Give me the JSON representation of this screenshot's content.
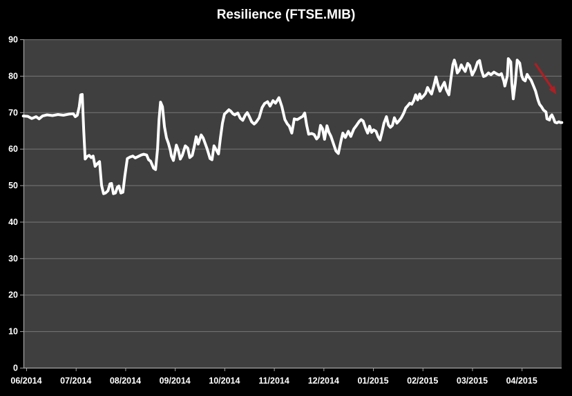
{
  "chart": {
    "title": "Resilience (FTSE.MIB)"
  },
  "colors": {
    "background": "#000000",
    "plot_background": "#3f3f3f",
    "gridline": "#787878",
    "axis": "#a6a6a6",
    "series_line": "#ffffff",
    "text": "#ffffff",
    "annotation_arrow": "#b01e23"
  },
  "chart_data": {
    "type": "line",
    "title": "Resilience (FTSE.MIB)",
    "xlabel": "",
    "ylabel": "",
    "ylim": [
      0,
      90
    ],
    "y_ticks": [
      0,
      10,
      20,
      30,
      40,
      50,
      60,
      70,
      80,
      90
    ],
    "x_tick_labels": [
      "06/2014",
      "07/2014",
      "08/2014",
      "09/2014",
      "10/2014",
      "11/2014",
      "12/2014",
      "01/2015",
      "02/2015",
      "03/2015",
      "04/2015"
    ],
    "grid": "horizontal",
    "legend": "none",
    "series": [
      {
        "name": "Resilience (FTSE.MIB)",
        "color": "#ffffff",
        "x_unit": "months since 06/2014 tick",
        "points": [
          [
            -0.06,
            69.0
          ],
          [
            0.03,
            68.9
          ],
          [
            0.11,
            68.3
          ],
          [
            0.2,
            68.8
          ],
          [
            0.26,
            68.2
          ],
          [
            0.33,
            69.0
          ],
          [
            0.42,
            69.3
          ],
          [
            0.53,
            69.1
          ],
          [
            0.64,
            69.4
          ],
          [
            0.75,
            69.2
          ],
          [
            0.86,
            69.5
          ],
          [
            0.95,
            69.6
          ],
          [
            0.99,
            68.8
          ],
          [
            1.03,
            69.2
          ],
          [
            1.07,
            71.5
          ],
          [
            1.1,
            74.8
          ],
          [
            1.13,
            74.9
          ],
          [
            1.16,
            65.0
          ],
          [
            1.19,
            57.2
          ],
          [
            1.23,
            57.9
          ],
          [
            1.27,
            58.2
          ],
          [
            1.31,
            57.6
          ],
          [
            1.35,
            58.0
          ],
          [
            1.39,
            55.2
          ],
          [
            1.44,
            56.0
          ],
          [
            1.48,
            56.5
          ],
          [
            1.52,
            50.0
          ],
          [
            1.56,
            47.7
          ],
          [
            1.6,
            47.9
          ],
          [
            1.65,
            48.5
          ],
          [
            1.69,
            50.4
          ],
          [
            1.72,
            50.5
          ],
          [
            1.76,
            47.7
          ],
          [
            1.8,
            47.9
          ],
          [
            1.84,
            49.5
          ],
          [
            1.87,
            49.8
          ],
          [
            1.91,
            47.9
          ],
          [
            1.95,
            48.1
          ],
          [
            1.99,
            52.5
          ],
          [
            2.04,
            57.3
          ],
          [
            2.09,
            57.7
          ],
          [
            2.15,
            58.0
          ],
          [
            2.2,
            57.5
          ],
          [
            2.26,
            57.9
          ],
          [
            2.32,
            58.3
          ],
          [
            2.37,
            58.5
          ],
          [
            2.43,
            58.3
          ],
          [
            2.47,
            57.0
          ],
          [
            2.51,
            56.6
          ],
          [
            2.57,
            54.7
          ],
          [
            2.61,
            54.3
          ],
          [
            2.65,
            60.0
          ],
          [
            2.68,
            68.0
          ],
          [
            2.71,
            72.8
          ],
          [
            2.75,
            71.5
          ],
          [
            2.79,
            66.0
          ],
          [
            2.83,
            63.0
          ],
          [
            2.87,
            61.5
          ],
          [
            2.91,
            59.5
          ],
          [
            2.93,
            58.0
          ],
          [
            2.97,
            56.8
          ],
          [
            3.03,
            61.0
          ],
          [
            3.07,
            59.5
          ],
          [
            3.11,
            57.2
          ],
          [
            3.15,
            58.2
          ],
          [
            3.21,
            60.8
          ],
          [
            3.26,
            60.2
          ],
          [
            3.3,
            57.6
          ],
          [
            3.35,
            58.2
          ],
          [
            3.39,
            60.5
          ],
          [
            3.43,
            63.3
          ],
          [
            3.47,
            61.3
          ],
          [
            3.53,
            63.8
          ],
          [
            3.57,
            63.0
          ],
          [
            3.61,
            61.5
          ],
          [
            3.65,
            60.0
          ],
          [
            3.71,
            57.3
          ],
          [
            3.75,
            57.0
          ],
          [
            3.79,
            60.8
          ],
          [
            3.83,
            59.8
          ],
          [
            3.88,
            58.6
          ],
          [
            3.92,
            63.0
          ],
          [
            3.96,
            67.0
          ],
          [
            4.0,
            69.5
          ],
          [
            4.04,
            70.0
          ],
          [
            4.09,
            70.7
          ],
          [
            4.13,
            70.3
          ],
          [
            4.17,
            69.6
          ],
          [
            4.21,
            69.3
          ],
          [
            4.27,
            69.8
          ],
          [
            4.32,
            68.4
          ],
          [
            4.37,
            67.8
          ],
          [
            4.42,
            69.2
          ],
          [
            4.46,
            69.9
          ],
          [
            4.5,
            68.9
          ],
          [
            4.55,
            67.4
          ],
          [
            4.6,
            66.8
          ],
          [
            4.64,
            67.3
          ],
          [
            4.7,
            68.5
          ],
          [
            4.76,
            71.3
          ],
          [
            4.81,
            72.4
          ],
          [
            4.87,
            72.9
          ],
          [
            4.92,
            71.7
          ],
          [
            4.98,
            73.2
          ],
          [
            5.03,
            72.5
          ],
          [
            5.1,
            74.0
          ],
          [
            5.16,
            71.5
          ],
          [
            5.22,
            68.0
          ],
          [
            5.27,
            66.8
          ],
          [
            5.31,
            66.2
          ],
          [
            5.36,
            64.3
          ],
          [
            5.41,
            68.2
          ],
          [
            5.47,
            68.0
          ],
          [
            5.52,
            68.4
          ],
          [
            5.58,
            68.9
          ],
          [
            5.62,
            69.8
          ],
          [
            5.66,
            66.5
          ],
          [
            5.7,
            64.0
          ],
          [
            5.76,
            64.2
          ],
          [
            5.81,
            63.9
          ],
          [
            5.86,
            62.7
          ],
          [
            5.9,
            63.3
          ],
          [
            5.94,
            66.4
          ],
          [
            5.98,
            65.5
          ],
          [
            6.02,
            62.6
          ],
          [
            6.07,
            66.3
          ],
          [
            6.11,
            64.5
          ],
          [
            6.15,
            63.4
          ],
          [
            6.21,
            61.0
          ],
          [
            6.25,
            59.4
          ],
          [
            6.3,
            58.7
          ],
          [
            6.35,
            62.0
          ],
          [
            6.39,
            64.3
          ],
          [
            6.44,
            63.1
          ],
          [
            6.5,
            64.8
          ],
          [
            6.55,
            63.4
          ],
          [
            6.61,
            65.4
          ],
          [
            6.67,
            66.5
          ],
          [
            6.72,
            67.5
          ],
          [
            6.76,
            68.0
          ],
          [
            6.8,
            67.6
          ],
          [
            6.85,
            65.6
          ],
          [
            6.89,
            64.3
          ],
          [
            6.93,
            66.2
          ],
          [
            6.97,
            64.5
          ],
          [
            7.01,
            65.2
          ],
          [
            7.06,
            64.8
          ],
          [
            7.1,
            63.3
          ],
          [
            7.14,
            62.4
          ],
          [
            7.18,
            64.5
          ],
          [
            7.22,
            67.0
          ],
          [
            7.27,
            68.8
          ],
          [
            7.31,
            66.5
          ],
          [
            7.35,
            65.9
          ],
          [
            7.39,
            66.4
          ],
          [
            7.43,
            68.5
          ],
          [
            7.48,
            67.0
          ],
          [
            7.53,
            67.8
          ],
          [
            7.57,
            68.5
          ],
          [
            7.62,
            69.8
          ],
          [
            7.66,
            71.2
          ],
          [
            7.7,
            71.8
          ],
          [
            7.74,
            72.5
          ],
          [
            7.78,
            72.2
          ],
          [
            7.82,
            73.2
          ],
          [
            7.86,
            74.8
          ],
          [
            7.9,
            73.4
          ],
          [
            7.94,
            75.0
          ],
          [
            7.97,
            73.8
          ],
          [
            8.02,
            74.5
          ],
          [
            8.06,
            75.2
          ],
          [
            8.1,
            76.8
          ],
          [
            8.14,
            75.8
          ],
          [
            8.18,
            75.0
          ],
          [
            8.23,
            77.5
          ],
          [
            8.27,
            79.7
          ],
          [
            8.31,
            77.5
          ],
          [
            8.35,
            75.8
          ],
          [
            8.4,
            77.2
          ],
          [
            8.44,
            78.2
          ],
          [
            8.48,
            76.2
          ],
          [
            8.53,
            74.8
          ],
          [
            8.57,
            79.0
          ],
          [
            8.61,
            83.0
          ],
          [
            8.64,
            84.3
          ],
          [
            8.67,
            83.0
          ],
          [
            8.7,
            80.8
          ],
          [
            8.74,
            81.5
          ],
          [
            8.78,
            83.0
          ],
          [
            8.82,
            82.0
          ],
          [
            8.86,
            81.2
          ],
          [
            8.91,
            83.4
          ],
          [
            8.95,
            82.8
          ],
          [
            9.0,
            80.2
          ],
          [
            9.06,
            81.8
          ],
          [
            9.11,
            83.8
          ],
          [
            9.15,
            84.2
          ],
          [
            9.19,
            81.5
          ],
          [
            9.23,
            79.8
          ],
          [
            9.27,
            80.0
          ],
          [
            9.33,
            80.8
          ],
          [
            9.38,
            80.3
          ],
          [
            9.44,
            81.0
          ],
          [
            9.5,
            80.5
          ],
          [
            9.55,
            80.2
          ],
          [
            9.59,
            80.6
          ],
          [
            9.64,
            78.5
          ],
          [
            9.66,
            77.2
          ],
          [
            9.71,
            80.0
          ],
          [
            9.73,
            84.7
          ],
          [
            9.78,
            83.8
          ],
          [
            9.8,
            78.0
          ],
          [
            9.83,
            73.7
          ],
          [
            9.87,
            78.0
          ],
          [
            9.91,
            84.3
          ],
          [
            9.96,
            83.5
          ],
          [
            10.0,
            80.0
          ],
          [
            10.03,
            79.0
          ],
          [
            10.07,
            78.6
          ],
          [
            10.11,
            80.4
          ],
          [
            10.15,
            79.5
          ],
          [
            10.19,
            78.8
          ],
          [
            10.23,
            77.5
          ],
          [
            10.28,
            75.8
          ],
          [
            10.31,
            74.3
          ],
          [
            10.33,
            73.3
          ],
          [
            10.36,
            72.2
          ],
          [
            10.4,
            71.5
          ],
          [
            10.44,
            70.6
          ],
          [
            10.49,
            70.1
          ],
          [
            10.51,
            68.2
          ],
          [
            10.56,
            67.9
          ],
          [
            10.58,
            68.8
          ],
          [
            10.61,
            69.3
          ],
          [
            10.64,
            68.4
          ],
          [
            10.67,
            67.3
          ],
          [
            10.71,
            67.1
          ],
          [
            10.75,
            67.4
          ],
          [
            10.78,
            67.2
          ],
          [
            10.81,
            67.2
          ]
        ]
      }
    ],
    "annotations": [
      {
        "type": "arrow",
        "color": "#b01e23",
        "from": [
          10.27,
          83.4
        ],
        "to": [
          10.7,
          74.9
        ],
        "meaning": "downward move at end of series"
      }
    ]
  }
}
